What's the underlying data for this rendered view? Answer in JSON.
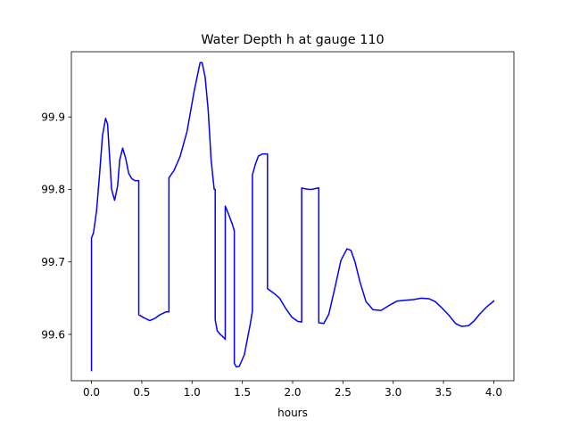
{
  "chart_data": {
    "type": "line",
    "title": "Water Depth h at gauge 110",
    "xlabel": "hours",
    "ylabel": "",
    "xlim": [
      -0.2,
      4.2
    ],
    "ylim": [
      99.536,
      99.99
    ],
    "xticks": [
      0.0,
      0.5,
      1.0,
      1.5,
      2.0,
      2.5,
      3.0,
      3.5,
      4.0
    ],
    "xtick_labels": [
      "0.0",
      "0.5",
      "1.0",
      "1.5",
      "2.0",
      "2.5",
      "3.0",
      "3.5",
      "4.0"
    ],
    "yticks": [
      99.6,
      99.7,
      99.8,
      99.9
    ],
    "ytick_labels": [
      "99.6",
      "99.7",
      "99.8",
      "99.9"
    ],
    "grid": false,
    "series": [
      {
        "color": "#0000ff",
        "x": [
          0.0,
          0.0,
          0.02,
          0.05,
          0.08,
          0.11,
          0.14,
          0.16,
          0.18,
          0.2,
          0.23,
          0.26,
          0.28,
          0.31,
          0.34,
          0.37,
          0.4,
          0.43,
          0.46,
          0.47,
          0.47,
          0.52,
          0.58,
          0.63,
          0.68,
          0.74,
          0.77,
          0.77,
          0.82,
          0.88,
          0.95,
          1.02,
          1.08,
          1.1,
          1.13,
          1.16,
          1.19,
          1.22,
          1.23,
          1.23,
          1.25,
          1.28,
          1.32,
          1.33,
          1.33,
          1.36,
          1.4,
          1.42,
          1.42,
          1.44,
          1.47,
          1.52,
          1.58,
          1.6,
          1.6,
          1.63,
          1.66,
          1.7,
          1.74,
          1.75,
          1.75,
          1.82,
          1.87,
          1.93,
          1.99,
          2.05,
          2.09,
          2.09,
          2.12,
          2.16,
          2.19,
          2.22,
          2.26,
          2.26,
          2.31,
          2.36,
          2.42,
          2.48,
          2.54,
          2.58,
          2.62,
          2.67,
          2.73,
          2.8,
          2.88,
          2.96,
          3.04,
          3.12,
          3.2,
          3.28,
          3.36,
          3.42,
          3.48,
          3.55,
          3.62,
          3.68,
          3.75,
          3.8,
          3.86,
          3.93,
          4.0
        ],
        "y": [
          99.55,
          99.733,
          99.74,
          99.77,
          99.82,
          99.875,
          99.898,
          99.89,
          99.845,
          99.8,
          99.785,
          99.805,
          99.84,
          99.857,
          99.843,
          99.822,
          99.815,
          99.812,
          99.812,
          99.812,
          99.627,
          99.623,
          99.619,
          99.622,
          99.627,
          99.631,
          99.631,
          99.816,
          99.826,
          99.845,
          99.88,
          99.935,
          99.975,
          99.975,
          99.955,
          99.91,
          99.84,
          99.8,
          99.8,
          99.62,
          99.605,
          99.6,
          99.595,
          99.593,
          99.777,
          99.767,
          99.752,
          99.743,
          99.56,
          99.555,
          99.556,
          99.572,
          99.615,
          99.632,
          99.82,
          99.835,
          99.846,
          99.849,
          99.849,
          99.849,
          99.663,
          99.656,
          99.65,
          99.636,
          99.624,
          99.618,
          99.617,
          99.802,
          99.801,
          99.8,
          99.8,
          99.801,
          99.802,
          99.616,
          99.615,
          99.628,
          99.664,
          99.702,
          99.718,
          99.716,
          99.7,
          99.672,
          99.645,
          99.634,
          99.633,
          99.64,
          99.646,
          99.647,
          99.648,
          99.65,
          99.649,
          99.645,
          99.637,
          99.627,
          99.615,
          99.611,
          99.612,
          99.618,
          99.628,
          99.638,
          99.646
        ]
      }
    ]
  }
}
